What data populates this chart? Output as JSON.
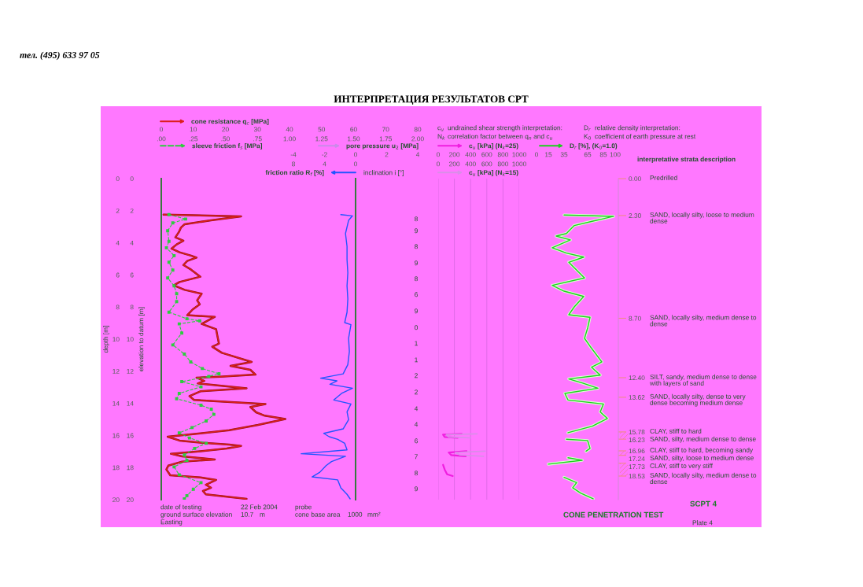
{
  "chart_data": [
    {
      "type": "line",
      "orientation": "horizontal",
      "title": "ИНТЕРПРЕТАЦИЯ РЕЗУЛЬТАТОВ CPT",
      "ylabel": "depth [m]",
      "y2label": "elevation to datum [m]",
      "xlim": [
        0,
        80
      ],
      "xticks": [
        0,
        10,
        20,
        30,
        40,
        50,
        60,
        70,
        80
      ],
      "x2lim": [
        0,
        2
      ],
      "x2ticks": [
        {
          "value": 0,
          "label": ".00"
        },
        {
          "value": 0.25,
          "label": ".25"
        },
        {
          "value": 0.5,
          "label": ".50"
        },
        {
          "value": 0.75,
          "label": ".75"
        },
        {
          "value": 1,
          "label": "1.00"
        },
        {
          "value": 1.25,
          "label": "1.25"
        },
        {
          "value": 1.5,
          "label": "1.50"
        },
        {
          "value": 1.75,
          "label": "1.75"
        },
        {
          "value": 2,
          "label": "2.00"
        }
      ],
      "ylim": [
        20,
        0
      ],
      "yticks": [
        0,
        2,
        4,
        6,
        8,
        10,
        12,
        14,
        16,
        18,
        20
      ],
      "y2lim": [
        20,
        0
      ],
      "y2ticks": [
        0,
        2,
        4,
        6,
        8,
        10,
        12,
        14,
        16,
        18,
        20
      ],
      "legend": "top left",
      "series": [
        {
          "name": "cone resistance q$_{c}$ [MPa]",
          "color": "#dc1e1e",
          "x": [
            2.24,
            2.35,
            2.6,
            2.84,
            3.06,
            3.33,
            3.66,
            3.87,
            4.1,
            4.36,
            4.59,
            4.8,
            4.92,
            5.13,
            5.38,
            5.67,
            6.11,
            6.44,
            6.65,
            6.93,
            7.17,
            7.58,
            7.83,
            8.15,
            8.51,
            8.61,
            9.05,
            9.38,
            9.79,
            10.28,
            10.47,
            10.85,
            11.42,
            11.67,
            11.91,
            12.21,
            12.34,
            12.4,
            12.6,
            12.76,
            13.06,
            13.25,
            13.55,
            13.79,
            14.04,
            14.23,
            14.56,
            14.77,
            14.98,
            15.34,
            15.67,
            15.87,
            16.08,
            16.32,
            16.45,
            16.57,
            16.65,
            16.81,
            16.98,
            17.14,
            17.3,
            17.5,
            17.63,
            17.88,
            18.12,
            18.48,
            18.61,
            18.77,
            19.07,
            19.26,
            19.46,
            19.67,
            19.95
          ],
          "values": [
            0.7,
            24.9,
            15.5,
            7.3,
            6.1,
            5.5,
            4.4,
            6.9,
            4.8,
            3.2,
            5.7,
            9.3,
            11.0,
            8.1,
            6.9,
            9.3,
            12.2,
            5.7,
            3.9,
            7.3,
            12.6,
            11.2,
            12.0,
            9.8,
            8.1,
            16.7,
            12.6,
            17.1,
            17.5,
            18.0,
            15.9,
            18.9,
            28.2,
            21.6,
            27.8,
            29.4,
            18.4,
            11.0,
            13.4,
            11.4,
            26.6,
            12.2,
            8.8,
            10.2,
            32.5,
            27.8,
            29.6,
            32.3,
            38.7,
            30.2,
            21.2,
            12.2,
            2.0,
            5.7,
            12.2,
            21.2,
            24.9,
            20.4,
            12.2,
            3.0,
            6.5,
            16.7,
            6.5,
            2.2,
            1.6,
            2.8,
            12.2,
            17.1,
            13.9,
            15.5,
            13.0,
            13.9,
            26.6
          ]
        },
        {
          "name": "sleeve friction f$_{s}$ [MPa]",
          "color": "#2ecc40",
          "axis": "x2",
          "line_style": "dashed",
          "marker": "square",
          "x": [
            2.24,
            2.52,
            2.76,
            3.25,
            3.91,
            4.31,
            4.8,
            5.21,
            5.7,
            6.19,
            6.68,
            7.17,
            7.66,
            8.32,
            8.73,
            8.86,
            9.05,
            9.62,
            10.36,
            10.93,
            11.42,
            11.83,
            12.16,
            12.32,
            12.65,
            12.97,
            13.38,
            13.71,
            14.12,
            14.36,
            14.69,
            15.1,
            15.51,
            15.84,
            16.16,
            16.49,
            16.81,
            17.22,
            17.55,
            17.96,
            18.45,
            18.94,
            19.35,
            19.75,
            19.95
          ],
          "values": [
            0.06,
            0.19,
            0.09,
            0.05,
            0.06,
            0.04,
            0.1,
            0.06,
            0.09,
            0.05,
            0.1,
            0.12,
            0.12,
            0.06,
            0.2,
            0.3,
            0.14,
            0.16,
            0.09,
            0.18,
            0.23,
            0.32,
            0.45,
            0.37,
            0.16,
            0.31,
            0.14,
            0.12,
            0.31,
            0.39,
            0.41,
            0.35,
            0.24,
            0.14,
            0.22,
            0.35,
            0.26,
            0.18,
            0.2,
            0.1,
            0.14,
            0.31,
            0.25,
            0.2,
            0.18
          ]
        }
      ],
      "annotations": [
        "тел. (495) 633 97 05",
        "date of testing",
        "22 Feb 2004",
        "ground surface elevation",
        "10.7",
        "m",
        "Easting",
        "probe",
        "cone base area",
        "1000",
        "mm²"
      ]
    },
    {
      "type": "line",
      "orientation": "horizontal",
      "xlim": [
        8,
        0
      ],
      "xticks": [
        8,
        4,
        0
      ],
      "ylim": [
        20,
        0
      ],
      "tick_labels": "x",
      "legend": "top left",
      "series": [
        {
          "name": "friction ratio R$_{f}$ [%]",
          "color": "#2255ff",
          "x": [
            2.24,
            2.32,
            2.6,
            3.42,
            4.23,
            5.05,
            5.87,
            6.68,
            7.5,
            8.32,
            8.97,
            9.1,
            9.95,
            10.77,
            11.59,
            12.16,
            12.43,
            12.6,
            12.81,
            13.06,
            13.38,
            13.79,
            14.04,
            14.53,
            15.02,
            15.59,
            15.87,
            16.08,
            16.24,
            16.49,
            16.9,
            17.14,
            17.3,
            17.63,
            17.88,
            18.29,
            18.58,
            18.77,
            19.26,
            19.67,
            19.95
          ],
          "values": [
            1.9,
            0.4,
            0.9,
            1.3,
            1.1,
            1.1,
            1.0,
            1.1,
            1.0,
            1.1,
            1.4,
            0.6,
            0.9,
            0.8,
            1.0,
            1.6,
            4.5,
            2.4,
            3.3,
            0.4,
            1.8,
            2.8,
            0.6,
            1.1,
            0.9,
            1.6,
            4.1,
            3.4,
            2.3,
            1.4,
            1.1,
            7.0,
            1.3,
            3.1,
            3.8,
            4.6,
            5.6,
            2.3,
            1.9,
            1.1,
            0.7
          ]
        }
      ]
    },
    {
      "type": "line",
      "orientation": "horizontal",
      "xlim": [
        -4,
        4
      ],
      "xticks": [
        -4,
        -2,
        0,
        2,
        4
      ],
      "tick_labels": "x",
      "legend": "top",
      "series": [
        {
          "name": "pore pressure u$_{2}$ [MPa]",
          "color": "#c98be8"
        }
      ],
      "annotations": [
        "inclination i [°]",
        "8",
        "9",
        "8",
        "9",
        "8",
        "6",
        "9",
        "0",
        "1",
        "1",
        "2",
        "2",
        "4",
        "4",
        "6",
        "7",
        "8",
        "9"
      ]
    },
    {
      "type": "line",
      "orientation": "horizontal",
      "xlim": [
        0,
        1000
      ],
      "xticks": [
        0,
        200,
        400,
        600,
        800,
        1000
      ],
      "x2lim": [
        0,
        1000
      ],
      "x2ticks": [
        0,
        200,
        400,
        600,
        800,
        1000
      ],
      "ylim": [
        20,
        0
      ],
      "tick_labels": "x",
      "grid": "x",
      "legend": "top left",
      "series": [
        {
          "name": "c$_{u}$ [kPa] (N$_{k}$=25)",
          "color": "#f01ee0",
          "x": [
            15.9,
            15.95,
            16.1,
            16.15,
            16.3,
            16.98,
            17.06,
            17.22,
            17.3,
            17.5,
            17.83,
            18.12,
            18.42,
            18.53
          ],
          "values": [
            290,
            60,
            80,
            240,
            null,
            350,
            130,
            160,
            340,
            null,
            60,
            80,
            110,
            180
          ]
        },
        {
          "name": "c$_{u}$ [kPa] (N$_{k}$=15)",
          "color": "#d98ee8",
          "axis": "x2",
          "x": [
            15.9,
            15.95,
            16.1,
            16.15,
            16.3,
            16.98,
            17.06,
            17.22,
            17.3
          ],
          "values": [
            480,
            100,
            130,
            400,
            null,
            580,
            210,
            270,
            560
          ]
        }
      ],
      "annotations": [
        "c$_{u}$",
        "undrained shear strength interpretation:",
        "N$_{k}$",
        "correlation factor between q$_{n}$ and c$_{u}$",
        "D$_{r}$",
        "relative density interpretation:",
        "K$_{0}$",
        "coefficient of earth pressure at rest"
      ]
    },
    {
      "type": "line",
      "orientation": "horizontal",
      "xlim": [
        0,
        100
      ],
      "xticks": [
        0,
        15,
        35,
        65,
        85,
        100
      ],
      "ylim": [
        20,
        0
      ],
      "legend": "top right",
      "y2lim": [
        20,
        0
      ],
      "y2ticks": [
        {
          "value": 0,
          "label": "0.00"
        },
        {
          "value": 2.3,
          "label": "2.30"
        },
        {
          "value": 8.7,
          "label": "8.70"
        },
        {
          "value": 12.4,
          "label": "12.40"
        },
        {
          "value": 13.62,
          "label": "13.62"
        },
        {
          "value": 15.78,
          "label": "15.78"
        },
        {
          "value": 16.23,
          "label": "16.23"
        },
        {
          "value": 16.96,
          "label": "16.96"
        },
        {
          "value": 17.24,
          "label": "17.24"
        },
        {
          "value": 17.73,
          "label": "17.73"
        },
        {
          "value": 18.53,
          "label": "18.53"
        }
      ],
      "series": [
        {
          "name": "D$_{r}$ [%], (K$_{0}$=1.0)",
          "color": "#1fcf1f",
          "x": [
            2.27,
            2.35,
            2.6,
            2.92,
            3.42,
            3.58,
            3.82,
            4.31,
            4.64,
            4.89,
            5.21,
            5.7,
            6.19,
            6.65,
            7.01,
            7.34,
            7.99,
            8.48,
            8.64,
            9.3,
            9.95,
            10.44,
            11.42,
            11.75,
            12.24,
            12.48,
            12.73,
            13.06,
            13.38,
            13.79,
            14.04,
            14.53,
            14.94,
            15.42,
            15.83,
            16.0,
            16.24,
            16.32,
            16.81,
            16.98,
            17.1,
            17.39,
            17.55,
            17.79,
            18.2,
            18.61,
            18.94,
            19.26,
            19.59,
            19.95
          ],
          "values": [
            35,
            98,
            76,
            48,
            38,
            25,
            43,
            20,
            38,
            60,
            41,
            51,
            61,
            20,
            35,
            60,
            48,
            41,
            68,
            65,
            61,
            68,
            83,
            70,
            81,
            41,
            58,
            78,
            36,
            40,
            85,
            81,
            90,
            71,
            40,
            null,
            38,
            65,
            68,
            63,
            null,
            40,
            58,
            15,
            null,
            35,
            51,
            46,
            56,
            72
          ]
        }
      ],
      "annotations": [
        "interpretative strata description",
        "SCPT 4",
        "CONE PENETRATION TEST",
        "Plate 4",
        "Predrilled",
        "SAND, locally silty, loose to medium dense",
        "SAND, locally silty, medium dense to dense",
        "SILT, sandy, medium dense to dense with layers of sand",
        "SAND, locally silty, dense to very dense becoming medium dense",
        "CLAY, stiff to hard",
        "SAND, silty, medium dense to dense",
        "CLAY, stiff to hard, becoming sandy",
        "SAND, silty, loose to medium dense",
        "CLAY, stiff to very stiff",
        "SAND, locally silty, medium dense to dense"
      ]
    }
  ]
}
